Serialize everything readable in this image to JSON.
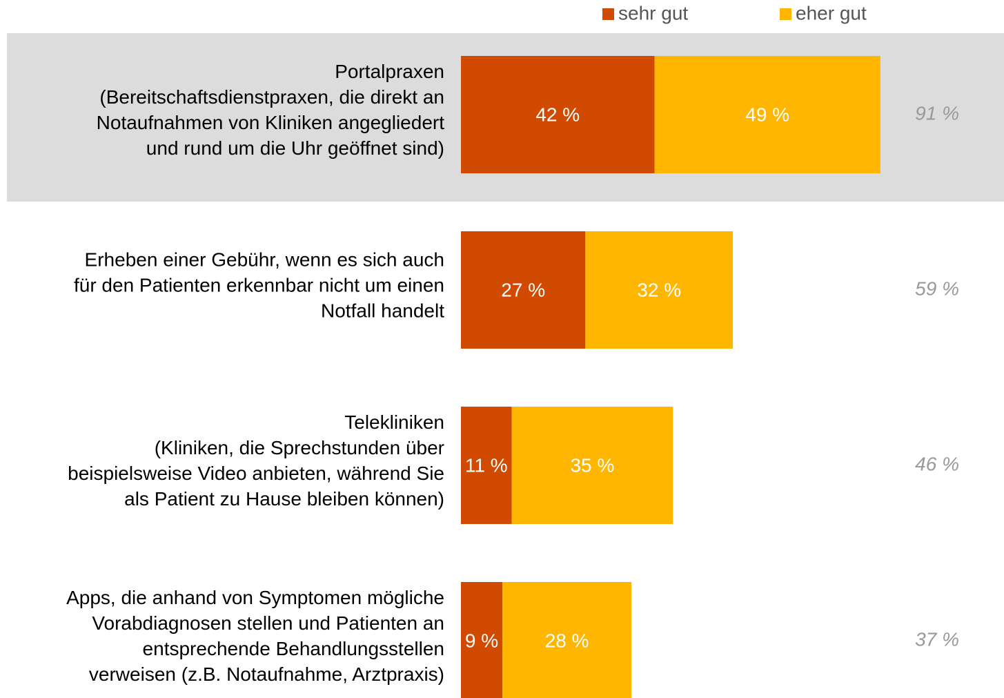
{
  "chart_data": {
    "type": "stacked-bar-horizontal",
    "categories": [
      [
        "Portalpraxen",
        "(Bereitschaftsdienstpraxen, die direkt an",
        "Notaufnahmen von Kliniken angegliedert",
        "und rund um die Uhr geöffnet sind)"
      ],
      [
        "Erheben einer Gebühr, wenn es sich auch",
        "für den Patienten erkennbar nicht um einen",
        "Notfall handelt"
      ],
      [
        "Telekliniken",
        "(Kliniken, die Sprechstunden über",
        "beispielsweise Video anbieten, während Sie",
        "als Patient zu Hause bleiben können)"
      ],
      [
        "Apps, die anhand von Symptomen mögliche",
        "Vorabdiagnosen stellen und Patienten an",
        "entsprechende Behandlungsstellen",
        "verweisen (z.B. Notaufnahme, Arztpraxis)"
      ]
    ],
    "series": [
      {
        "name": "sehr gut",
        "color": "#d04a02",
        "values": [
          42,
          27,
          11,
          9
        ],
        "value_labels": [
          "42 %",
          "27 %",
          "11 %",
          "9 %"
        ]
      },
      {
        "name": "eher gut",
        "color": "#ffb600",
        "values": [
          49,
          32,
          35,
          28
        ],
        "value_labels": [
          "49 %",
          "32 %",
          "35 %",
          "28 %"
        ]
      }
    ],
    "total_labels": [
      "91 %",
      "59 %",
      "46 %",
      "37 %"
    ],
    "xlim": [
      0,
      100
    ]
  }
}
